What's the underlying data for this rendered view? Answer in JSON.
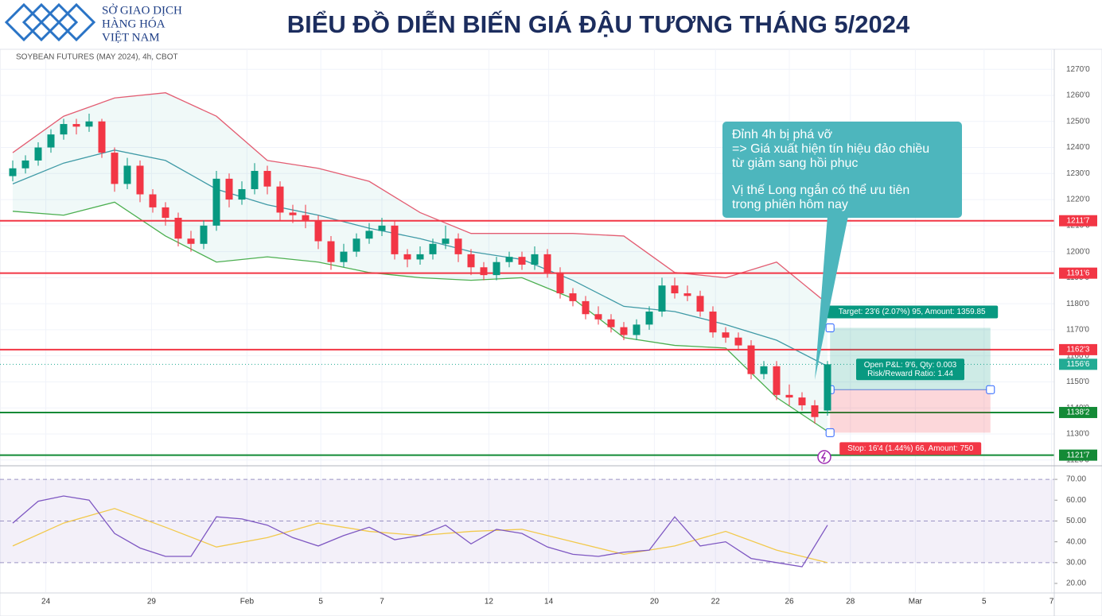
{
  "header": {
    "logo_lines": [
      "SỞ GIAO DỊCH",
      "HÀNG HÓA",
      "VIỆT NAM"
    ],
    "title": "BIỂU ĐỒ DIỄN BIẾN GIÁ ĐẬU TƯƠNG THÁNG 5/2024"
  },
  "chart_data": {
    "type": "candlestick",
    "caption": "SOYBEAN FUTURES (MAY 2024), 4h, CBOT",
    "up_color": "#089981",
    "down_color": "#f23645",
    "grid": true,
    "xlim": [
      -1,
      81.8125
    ],
    "xticks": [
      {
        "value": 2.6,
        "label": "24"
      },
      {
        "value": 10.9,
        "label": "29"
      },
      {
        "value": 18.4,
        "label": "Feb"
      },
      {
        "value": 24.2,
        "label": "5"
      },
      {
        "value": 29.0,
        "label": "7"
      },
      {
        "value": 37.4,
        "label": "12"
      },
      {
        "value": 42.1,
        "label": "14"
      },
      {
        "value": 50.4,
        "label": "20"
      },
      {
        "value": 55.2,
        "label": "22"
      },
      {
        "value": 61.0,
        "label": "26"
      },
      {
        "value": 65.8,
        "label": "28"
      },
      {
        "value": 70.9,
        "label": "Mar"
      },
      {
        "value": 76.3,
        "label": "5"
      },
      {
        "value": 81.6,
        "label": "7"
      }
    ],
    "ylim": [
      1118.4,
      1277.7
    ],
    "yticks": [
      {
        "value": 1120,
        "label": "1120'0"
      },
      {
        "value": 1130,
        "label": "1130'0"
      },
      {
        "value": 1140,
        "label": "1140'0"
      },
      {
        "value": 1150,
        "label": "1150'0"
      },
      {
        "value": 1160,
        "label": "1160'0"
      },
      {
        "value": 1170,
        "label": "1170'0"
      },
      {
        "value": 1180,
        "label": "1180'0"
      },
      {
        "value": 1190,
        "label": "1190'0"
      },
      {
        "value": 1200,
        "label": "1200'0"
      },
      {
        "value": 1210,
        "label": "1210'0"
      },
      {
        "value": 1220,
        "label": "1220'0"
      },
      {
        "value": 1230,
        "label": "1230'0"
      },
      {
        "value": 1240,
        "label": "1240'0"
      },
      {
        "value": 1250,
        "label": "1250'0"
      },
      {
        "value": 1260,
        "label": "1260'0"
      },
      {
        "value": 1270,
        "label": "1270'0"
      }
    ],
    "candles": [
      [
        1229,
        1235,
        1227,
        1232
      ],
      [
        1232,
        1237,
        1230,
        1235
      ],
      [
        1235,
        1242,
        1233,
        1240
      ],
      [
        1240,
        1247,
        1238,
        1245
      ],
      [
        1245,
        1251,
        1243,
        1249
      ],
      [
        1249,
        1251,
        1245,
        1248
      ],
      [
        1248,
        1253,
        1246,
        1250
      ],
      [
        1250,
        1251,
        1236,
        1238
      ],
      [
        1238,
        1240,
        1223,
        1226
      ],
      [
        1226,
        1236,
        1224,
        1233
      ],
      [
        1233,
        1235,
        1219,
        1222
      ],
      [
        1222,
        1224,
        1215,
        1217
      ],
      [
        1217,
        1219,
        1210,
        1213
      ],
      [
        1213,
        1215,
        1202,
        1205
      ],
      [
        1205,
        1208,
        1200,
        1203
      ],
      [
        1203,
        1212,
        1201,
        1210
      ],
      [
        1210,
        1231,
        1208,
        1228
      ],
      [
        1228,
        1230,
        1217,
        1220
      ],
      [
        1220,
        1227,
        1218,
        1224
      ],
      [
        1224,
        1234,
        1222,
        1231
      ],
      [
        1231,
        1233,
        1222,
        1225
      ],
      [
        1225,
        1227,
        1212,
        1215
      ],
      [
        1215,
        1218,
        1211,
        1214
      ],
      [
        1214,
        1218,
        1209,
        1212
      ],
      [
        1212,
        1214,
        1201,
        1204
      ],
      [
        1204,
        1206,
        1193,
        1196
      ],
      [
        1196,
        1203,
        1194,
        1200
      ],
      [
        1200,
        1207,
        1198,
        1205
      ],
      [
        1205,
        1211,
        1203,
        1208
      ],
      [
        1208,
        1213,
        1206,
        1210
      ],
      [
        1210,
        1212,
        1197,
        1199
      ],
      [
        1199,
        1201,
        1194,
        1197
      ],
      [
        1197,
        1202,
        1195,
        1199
      ],
      [
        1199,
        1205,
        1197,
        1203
      ],
      [
        1203,
        1210,
        1201,
        1205
      ],
      [
        1205,
        1207,
        1196,
        1199
      ],
      [
        1199,
        1201,
        1191,
        1194
      ],
      [
        1194,
        1196,
        1189,
        1191
      ],
      [
        1191,
        1198,
        1189,
        1196
      ],
      [
        1196,
        1200,
        1194,
        1198
      ],
      [
        1198,
        1200,
        1193,
        1195
      ],
      [
        1195,
        1202,
        1193,
        1199
      ],
      [
        1199,
        1201,
        1190,
        1192
      ],
      [
        1192,
        1194,
        1182,
        1184
      ],
      [
        1184,
        1186,
        1179,
        1181
      ],
      [
        1181,
        1183,
        1174,
        1176
      ],
      [
        1176,
        1179,
        1172,
        1174
      ],
      [
        1174,
        1176,
        1169,
        1171
      ],
      [
        1171,
        1173,
        1166,
        1168
      ],
      [
        1168,
        1174,
        1166,
        1172
      ],
      [
        1172,
        1179,
        1170,
        1177
      ],
      [
        1177,
        1190,
        1175,
        1187
      ],
      [
        1187,
        1190,
        1182,
        1184
      ],
      [
        1184,
        1187,
        1181,
        1183
      ],
      [
        1183,
        1185,
        1175,
        1177
      ],
      [
        1177,
        1179,
        1167,
        1169
      ],
      [
        1169,
        1171,
        1165,
        1167
      ],
      [
        1167,
        1169,
        1162,
        1164
      ],
      [
        1164,
        1166,
        1151,
        1153
      ],
      [
        1153,
        1158,
        1151,
        1156
      ],
      [
        1156,
        1158,
        1143,
        1145
      ],
      [
        1145,
        1149,
        1141,
        1144
      ],
      [
        1144,
        1146,
        1139,
        1141
      ],
      [
        1141,
        1143,
        1134,
        1136.5
      ],
      [
        1139,
        1158,
        1137,
        1156.75
      ]
    ],
    "bands": {
      "x": [
        0,
        4,
        8,
        12,
        16,
        20,
        24,
        28,
        32,
        36,
        40,
        44,
        48,
        52,
        56,
        60,
        64
      ],
      "upper": [
        1238,
        1252,
        1259,
        1261,
        1252,
        1235,
        1232,
        1227,
        1215,
        1207,
        1207,
        1207,
        1206,
        1192,
        1190,
        1196,
        1180
      ],
      "middle": [
        1226,
        1234,
        1239,
        1235,
        1224,
        1218,
        1214,
        1209,
        1205,
        1200,
        1197,
        1189,
        1179,
        1177,
        1172,
        1166,
        1156
      ],
      "lower": [
        1215.5,
        1214,
        1219,
        1206,
        1196,
        1198,
        1196,
        1192,
        1190,
        1189,
        1190,
        1182,
        1167,
        1164,
        1163,
        1144,
        1131
      ],
      "upper_color": "#e35d72",
      "middle_color": "#3f9aa6",
      "lower_color": "#4caf50"
    },
    "levels": [
      {
        "value": 1211.875,
        "label": "1211'7",
        "color": "#f23645",
        "style": "solid"
      },
      {
        "value": 1191.75,
        "label": "1191'6",
        "color": "#f23645",
        "style": "solid"
      },
      {
        "value": 1162.375,
        "label": "1162'3",
        "color": "#f23645",
        "style": "solid"
      },
      {
        "value": 1156.75,
        "label": "1156'6",
        "color": "#22ab94",
        "style": "dotted"
      },
      {
        "value": 1138.25,
        "label": "1138'2",
        "color": "#138a36",
        "style": "solid"
      },
      {
        "value": 1121.875,
        "label": "1121'7",
        "color": "#138a36",
        "style": "solid"
      }
    ],
    "position": {
      "xrange": [
        64.2,
        76.8
      ],
      "entry": 1147,
      "target": 1170.75,
      "stop": 1130.5,
      "target_label": "Target: 23'6 (2.07%) 95, Amount: 1359.85",
      "pnl_lines": [
        "Open P&L: 9'6, Qty: 0.003",
        "Risk/Reward Ratio: 1.44"
      ],
      "stop_label": "Stop: 16'4 (1.44%) 66, Amount: 750"
    },
    "annotation": {
      "lines": [
        "Đỉnh 4h bị phá vỡ",
        "=> Giá xuất hiện tín hiệu đảo chiều",
        "từ giảm sang hồi phục",
        "Vị thế Long ngắn có thể ưu tiên",
        "trong phiên hôm nay"
      ],
      "color": "#4db6bd"
    },
    "rsi": {
      "ylim": [
        15.8,
        75
      ],
      "yticks": [
        {
          "value": 20,
          "label": "20.00"
        },
        {
          "value": 30,
          "label": "30.00"
        },
        {
          "value": 40,
          "label": "40.00"
        },
        {
          "value": 50,
          "label": "50.00"
        },
        {
          "value": 60,
          "label": "60.00"
        },
        {
          "value": 70,
          "label": "70.00"
        }
      ],
      "guides": [
        70,
        50,
        30
      ],
      "x": [
        0,
        2,
        4,
        6,
        8,
        10,
        12,
        14,
        16,
        18,
        20,
        22,
        24,
        26,
        28,
        30,
        32,
        34,
        36,
        38,
        40,
        42,
        44,
        46,
        48,
        50,
        52,
        54,
        56,
        58,
        60,
        62,
        64
      ],
      "values": [
        49,
        59.5,
        62,
        60,
        44,
        37,
        33,
        33,
        52,
        51,
        48,
        42,
        38,
        43,
        47,
        41,
        43,
        48,
        39,
        46,
        44,
        37.5,
        34,
        33,
        35,
        36,
        52,
        38,
        40,
        32,
        30,
        28,
        48
      ],
      "color": "#7e57c2",
      "ma_x": [
        0,
        4,
        8,
        12,
        16,
        20,
        24,
        28,
        32,
        36,
        40,
        44,
        48,
        52,
        56,
        60,
        64
      ],
      "ma": [
        38,
        49,
        56,
        47,
        37.5,
        42,
        49,
        45,
        43,
        45,
        46,
        40,
        34,
        38,
        45,
        36,
        30
      ],
      "ma_color": "#f2c94c"
    }
  }
}
